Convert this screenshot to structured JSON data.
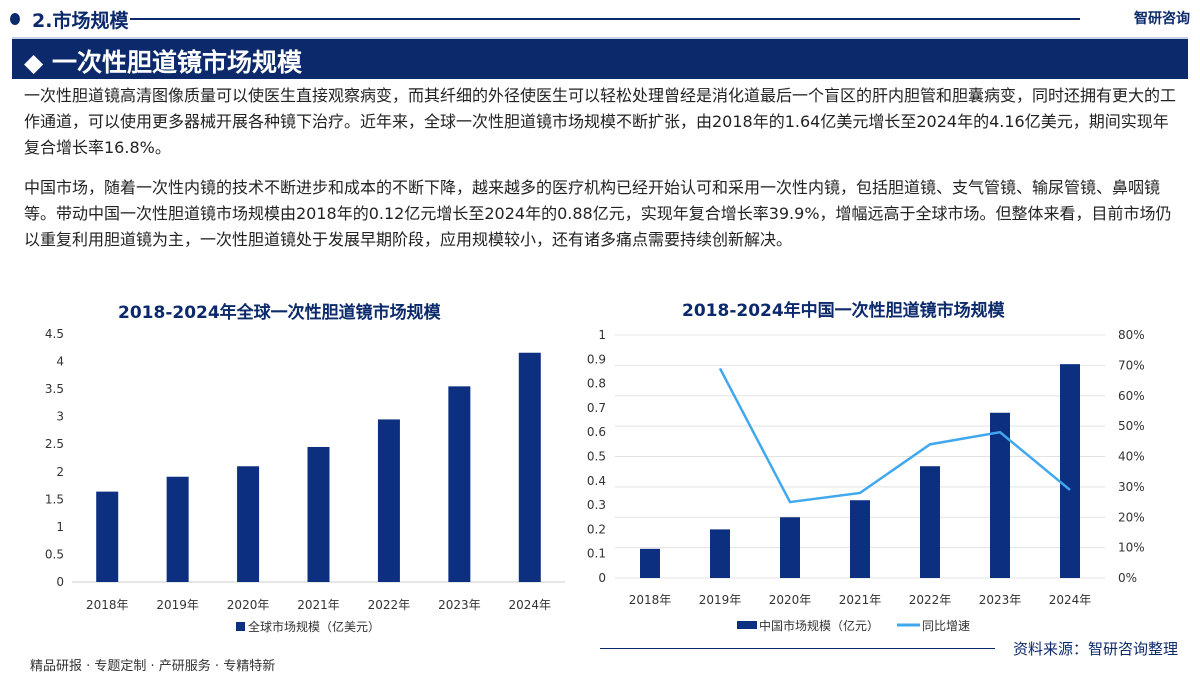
{
  "header": {
    "section": "2.市场规模",
    "brand": "智研咨询",
    "title": "一次性胆道镜市场规模"
  },
  "paragraphs": [
    "一次性胆道镜高清图像质量可以使医生直接观察病变，而其纤细的外径使医生可以轻松处理曾经是消化道最后一个盲区的肝内胆管和胆囊病变，同时还拥有更大的工作通道，可以使用更多器械开展各种镜下治疗。近年来，全球一次性胆道镜市场规模不断扩张，由2018年的1.64亿美元增长至2024年的4.16亿美元，期间实现年复合增长率16.8%。",
    "中国市场，随着一次性内镜的技术不断进步和成本的不断下降，越来越多的医疗机构已经开始认可和采用一次性内镜，包括胆道镜、支气管镜、输尿管镜、鼻咽镜等。带动中国一次性胆道镜市场规模由2018年的0.12亿元增长至2024年的0.88亿元，实现年复合增长率39.9%，增幅远高于全球市场。但整体来看，目前市场仍以重复利用胆道镜为主，一次性胆道镜处于发展早期阶段，应用规模较小，还有诸多痛点需要持续创新解决。"
  ],
  "chart_data": [
    {
      "type": "bar",
      "title": "2018-2024年全球一次性胆道镜市场规模",
      "categories": [
        "2018年",
        "2019年",
        "2020年",
        "2021年",
        "2022年",
        "2023年",
        "2024年"
      ],
      "series": [
        {
          "name": "全球市场规模（亿美元）",
          "values": [
            1.64,
            1.91,
            2.1,
            2.45,
            2.95,
            3.55,
            4.16
          ]
        }
      ],
      "ylim": [
        0,
        4.5
      ],
      "yticks": [
        "0",
        "0.5",
        "1",
        "1.5",
        "2",
        "2.5",
        "3",
        "3.5",
        "4",
        "4.5"
      ],
      "legend": "bottom",
      "grid": false,
      "color": "#0c2f80"
    },
    {
      "type": "bar+line",
      "title": "2018-2024年中国一次性胆道镜市场规模",
      "categories": [
        "2018年",
        "2019年",
        "2020年",
        "2021年",
        "2022年",
        "2023年",
        "2024年"
      ],
      "series": [
        {
          "name": "中国市场规模（亿元）",
          "type": "bar",
          "values": [
            0.12,
            0.2,
            0.25,
            0.32,
            0.46,
            0.68,
            0.88
          ],
          "color": "#0c2f80"
        },
        {
          "name": "同比增速",
          "type": "line",
          "axis": "right",
          "values": [
            null,
            0.69,
            0.25,
            0.28,
            0.44,
            0.48,
            0.29
          ],
          "color": "#41a8ee"
        }
      ],
      "ylim": [
        0,
        1
      ],
      "yticks": [
        "0",
        "0.1",
        "0.2",
        "0.3",
        "0.4",
        "0.5",
        "0.6",
        "0.7",
        "0.8",
        "0.9",
        "1"
      ],
      "y2lim": [
        0,
        0.8
      ],
      "y2ticks": [
        "0%",
        "10%",
        "20%",
        "30%",
        "40%",
        "50%",
        "60%",
        "70%",
        "80%"
      ],
      "legend": "bottom",
      "grid": true
    }
  ],
  "footer": {
    "services": "精品研报 · 专题定制 · 产研服务 · 专精特新",
    "source": "资料来源：智研咨询整理"
  }
}
